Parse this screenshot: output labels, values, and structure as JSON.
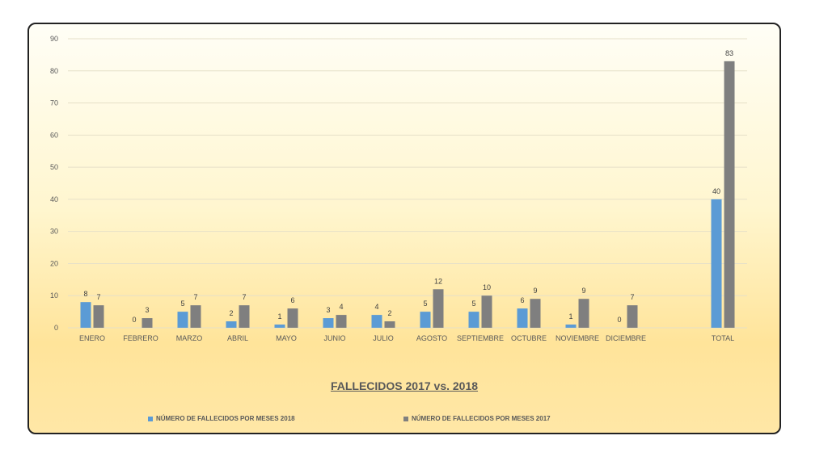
{
  "chart_data": {
    "type": "bar",
    "title": "FALLECIDOS 2017 vs. 2018",
    "categories": [
      "ENERO",
      "FEBRERO",
      "MARZO",
      "ABRIL",
      "MAYO",
      "JUNIO",
      "JULIO",
      "AGOSTO",
      "SEPTIEMBRE",
      "OCTUBRE",
      "NOVIEMBRE",
      "DICIEMBRE",
      "",
      "TOTAL"
    ],
    "series": [
      {
        "name": "NÚMERO DE FALLECIDOS POR MESES 2018",
        "color": "#5b9bd5",
        "values": [
          8,
          0,
          5,
          2,
          1,
          3,
          4,
          5,
          5,
          6,
          1,
          0,
          null,
          40
        ]
      },
      {
        "name": "NÚMERO DE FALLECIDOS POR MESES 2017",
        "color": "#7f7f7f",
        "values": [
          7,
          3,
          7,
          7,
          6,
          4,
          2,
          12,
          10,
          9,
          9,
          7,
          null,
          83
        ]
      }
    ],
    "ylim": [
      0,
      90
    ],
    "yticks": [
      0,
      10,
      20,
      30,
      40,
      50,
      60,
      70,
      80,
      90
    ],
    "grid": true,
    "legend_position": "bottom"
  }
}
